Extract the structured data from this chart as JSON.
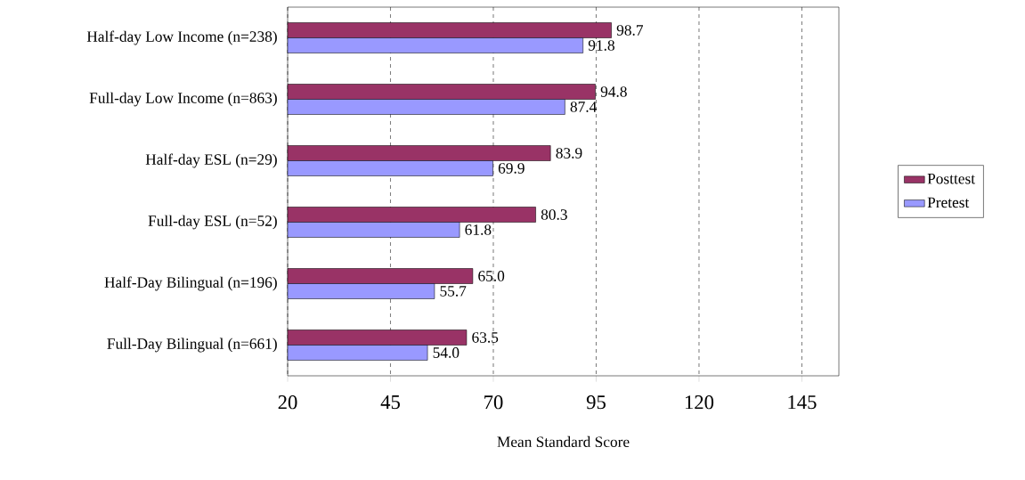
{
  "chart_data": {
    "type": "bar",
    "orientation": "horizontal",
    "xlabel": "Mean Standard Score",
    "categories": [
      "Half-day Low Income (n=238)",
      "Full-day Low Income (n=863)",
      "Half-day ESL (n=29)",
      "Full-day ESL (n=52)",
      "Half-Day Bilingual (n=196)",
      "Full-Day Bilingual (n=661)"
    ],
    "series": [
      {
        "name": "Posttest",
        "color": "#993366",
        "values": [
          98.7,
          94.8,
          83.9,
          80.3,
          65.0,
          63.5
        ],
        "value_labels": [
          "98.7",
          "94.8",
          "83.9",
          "80.3",
          "65.0",
          "63.5"
        ]
      },
      {
        "name": "Pretest",
        "color": "#9999ff",
        "values": [
          91.8,
          87.4,
          69.9,
          61.8,
          55.7,
          54.0
        ],
        "value_labels": [
          "91.8",
          "87.4",
          "69.9",
          "61.8",
          "55.7",
          "54.0"
        ]
      }
    ],
    "xlim": [
      20,
      154
    ],
    "xticks": [
      20,
      45,
      70,
      95,
      120,
      145
    ],
    "grid": "x",
    "legend": "right"
  }
}
